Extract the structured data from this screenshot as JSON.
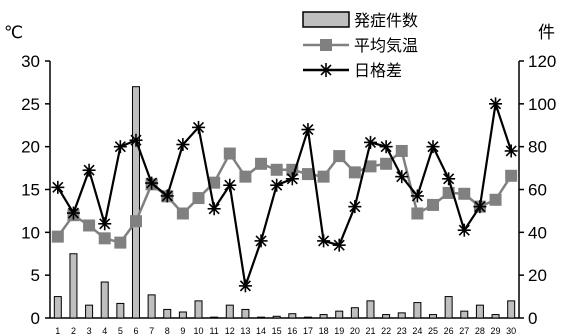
{
  "chart_data": {
    "type": "bar+line",
    "categories": [
      "1",
      "2",
      "3",
      "4",
      "5",
      "6",
      "7",
      "8",
      "9",
      "10",
      "11",
      "12",
      "13",
      "14",
      "15",
      "16",
      "17",
      "18",
      "19",
      "20",
      "21",
      "22",
      "23",
      "24",
      "25",
      "26",
      "27",
      "28",
      "29",
      "30"
    ],
    "y_left_unit": "℃",
    "y_right_unit": "件",
    "y_left_ticks": [
      "0",
      "5",
      "10",
      "15",
      "20",
      "25",
      "30"
    ],
    "y_right_ticks": [
      "0",
      "20",
      "40",
      "60",
      "80",
      "100",
      "120"
    ],
    "ylim_left": [
      0,
      30
    ],
    "ylim_right": [
      0,
      120
    ],
    "grid": false,
    "legend_position": "top-center",
    "series": [
      {
        "name": "発症件数",
        "type": "bar",
        "axis": "left",
        "color": "#bfbfbf",
        "values": [
          2.5,
          7.5,
          1.5,
          4.2,
          1.7,
          27,
          2.7,
          1.0,
          0.7,
          2.0,
          0.1,
          1.5,
          1.0,
          0.1,
          0.2,
          0.5,
          0.1,
          0.4,
          0.8,
          1.2,
          2.0,
          0.4,
          0.6,
          1.8,
          0.4,
          2.5,
          0.8,
          1.5,
          0.4,
          2.0
        ]
      },
      {
        "name": "平均気温",
        "type": "line",
        "axis": "left",
        "marker": "square",
        "color": "#808080",
        "values": [
          9.5,
          12.0,
          10.8,
          9.3,
          8.8,
          11.3,
          15.6,
          14.2,
          12.2,
          14.0,
          15.8,
          19.2,
          16.5,
          18.0,
          17.3,
          17.3,
          16.8,
          16.5,
          18.9,
          17.0,
          17.7,
          18.0,
          19.5,
          12.2,
          13.2,
          14.6,
          14.5,
          13.0,
          13.8,
          16.6
        ]
      },
      {
        "name": "日格差",
        "type": "line",
        "axis": "right",
        "marker": "asterisk",
        "color": "#000000",
        "values": [
          61,
          49,
          69,
          44,
          80,
          83,
          63,
          57,
          81,
          89,
          51,
          62,
          15,
          36,
          62,
          65,
          88,
          36,
          34,
          52,
          82,
          80,
          66,
          57,
          80,
          65,
          41,
          52,
          100,
          78
        ]
      }
    ]
  }
}
